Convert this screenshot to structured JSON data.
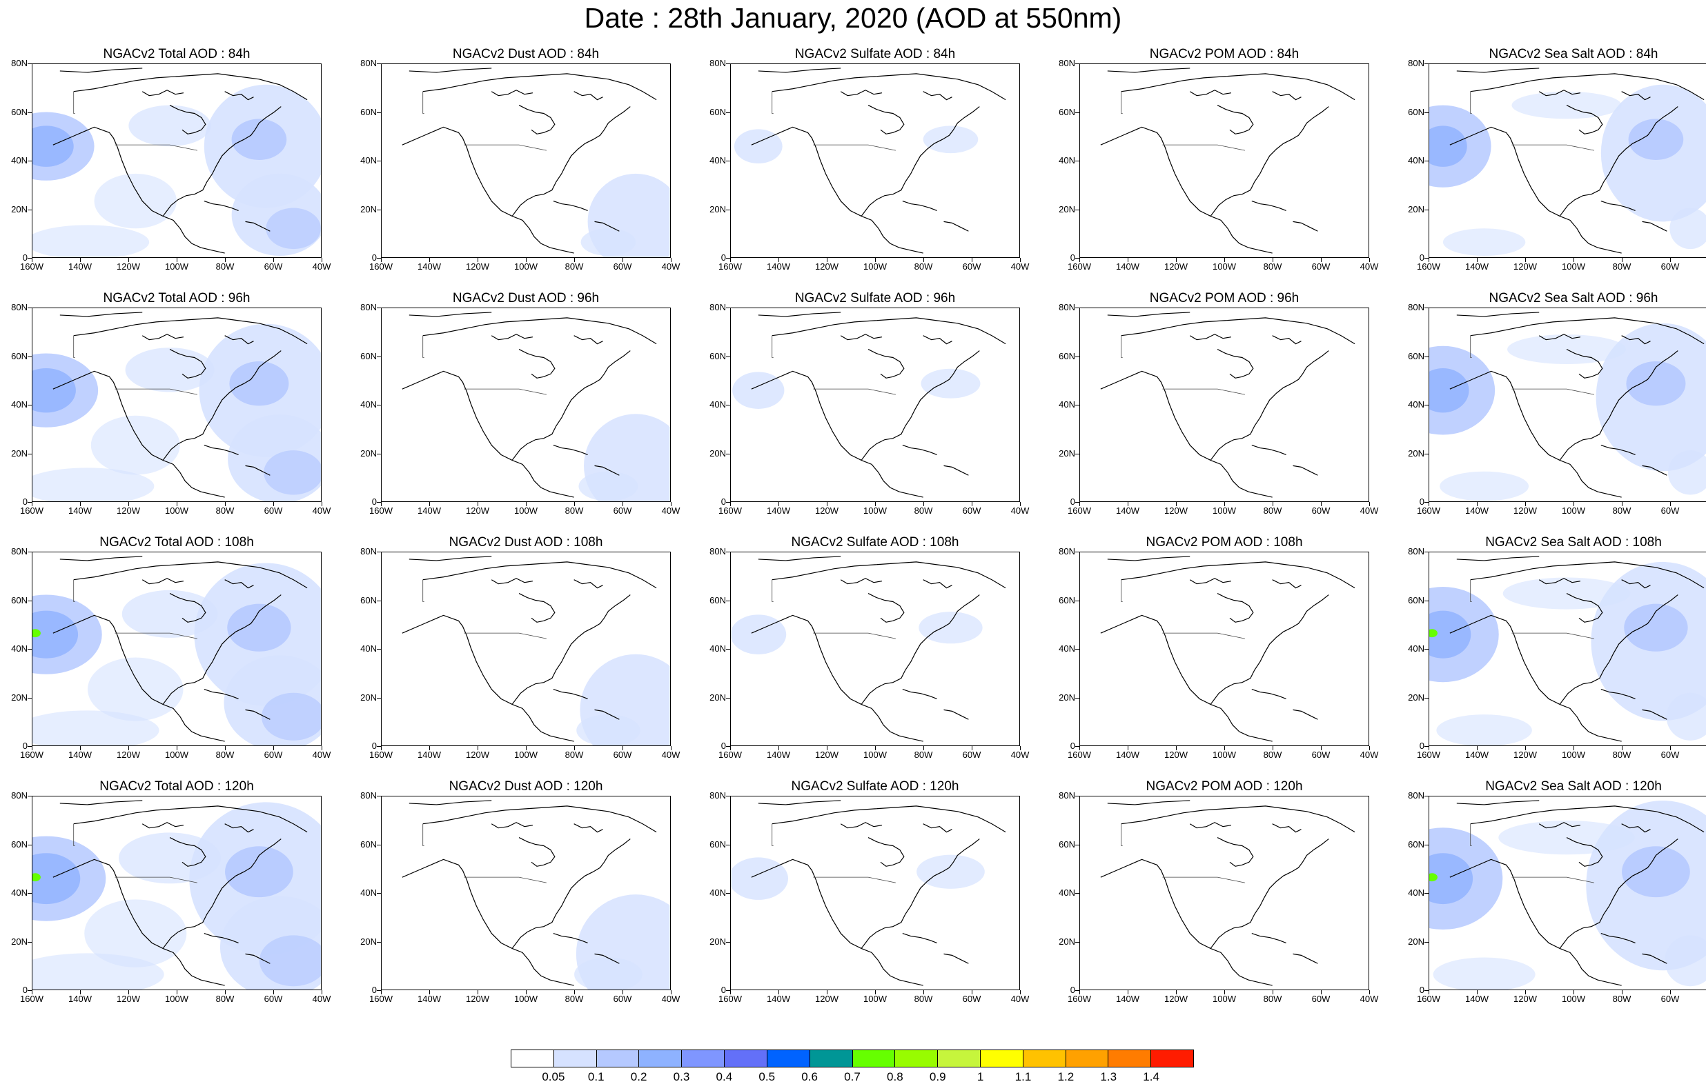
{
  "title": "Date : 28th January, 2020 (AOD at 550nm)",
  "panels": [
    {
      "title": "NGACv2 Total AOD : 84h"
    },
    {
      "title": "NGACv2 Dust AOD : 84h"
    },
    {
      "title": "NGACv2 Sulfate AOD : 84h"
    },
    {
      "title": "NGACv2 POM AOD : 84h"
    },
    {
      "title": "NGACv2 Sea Salt AOD : 84h"
    },
    {
      "title": "NGACv2 Total AOD : 96h"
    },
    {
      "title": "NGACv2 Dust AOD : 96h"
    },
    {
      "title": "NGACv2 Sulfate AOD : 96h"
    },
    {
      "title": "NGACv2 POM AOD : 96h"
    },
    {
      "title": "NGACv2 Sea Salt AOD : 96h"
    },
    {
      "title": "NGACv2 Total AOD : 108h"
    },
    {
      "title": "NGACv2 Dust AOD : 108h"
    },
    {
      "title": "NGACv2 Sulfate AOD : 108h"
    },
    {
      "title": "NGACv2 POM AOD : 108h"
    },
    {
      "title": "NGACv2 Sea Salt AOD : 108h"
    },
    {
      "title": "NGACv2 Total AOD : 120h"
    },
    {
      "title": "NGACv2 Dust AOD : 120h"
    },
    {
      "title": "NGACv2 Sulfate AOD : 120h"
    },
    {
      "title": "NGACv2 POM AOD : 120h"
    },
    {
      "title": "NGACv2 Sea Salt  AOD : 120h"
    }
  ],
  "axes": {
    "lat_ticks": [
      "80N",
      "60N",
      "40N",
      "20N",
      "0"
    ],
    "lon_ticks": [
      "160W",
      "140W",
      "120W",
      "100W",
      "80W",
      "60W",
      "40W"
    ]
  },
  "colorbar": {
    "labels": [
      "0.05",
      "0.1",
      "0.2",
      "0.3",
      "0.4",
      "0.5",
      "0.6",
      "0.7",
      "0.8",
      "0.9",
      "1",
      "1.1",
      "1.2",
      "1.3",
      "1.4"
    ],
    "colors": [
      "#ffffff",
      "#d6e2ff",
      "#b5c9ff",
      "#8eb2ff",
      "#7f96ff",
      "#6370f8",
      "#0063ff",
      "#009696",
      "#66ff00",
      "#98fc00",
      "#c6f53c",
      "#ffff00",
      "#ffc200",
      "#ffa100",
      "#ff7c00",
      "#ff1c00"
    ]
  }
}
